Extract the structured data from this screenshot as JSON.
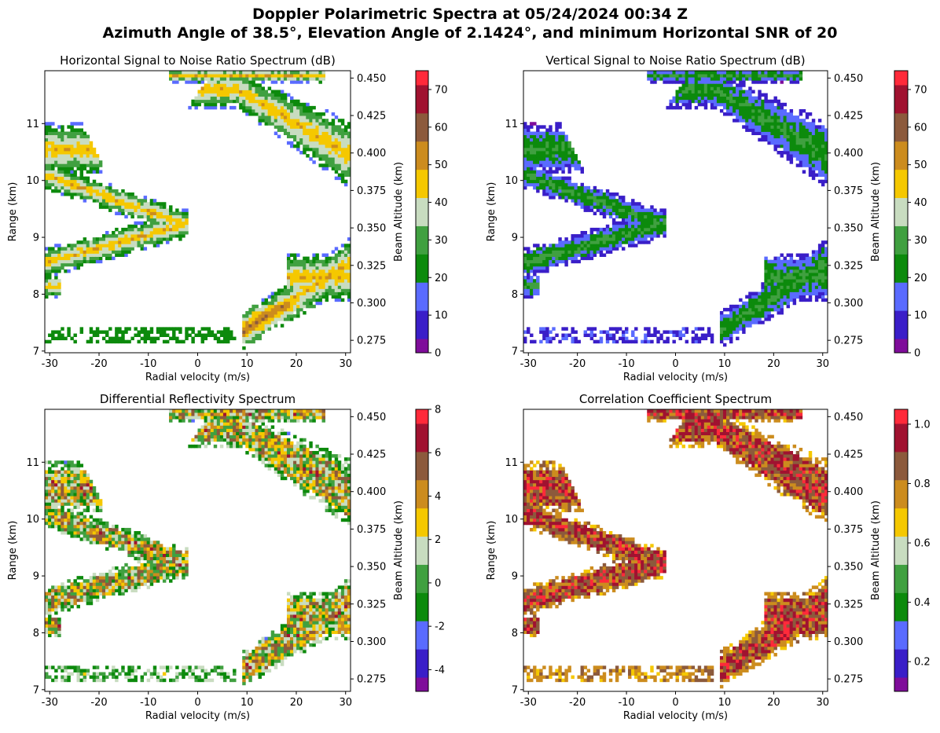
{
  "figure": {
    "title_line1": "Doppler Polarimetric Spectra at 05/24/2024 00:34 Z",
    "title_line2": "Azimuth Angle of 38.5°, Elevation Angle of 2.1424°, and minimum Horizontal SNR of 20"
  },
  "chart_data": [
    {
      "type": "heatmap",
      "title": "Horizontal Signal to Noise Ratio Spectrum (dB)",
      "xlabel": "Radial velocity (m/s)",
      "ylabel": "Range (km)",
      "ylabel_right": "Beam Altitude (km)",
      "xlim": [
        -31,
        31
      ],
      "ylim": [
        6.97,
        11.93
      ],
      "y2lim": [
        0.2667,
        0.4549
      ],
      "x_ticks": [
        -30,
        -20,
        -10,
        0,
        10,
        20,
        30
      ],
      "y_ticks": [
        7,
        8,
        9,
        10,
        11
      ],
      "y2_ticks": [
        "0.275",
        "0.300",
        "0.325",
        "0.350",
        "0.375",
        "0.400",
        "0.425",
        "0.450"
      ],
      "colorbar": {
        "min": 0,
        "max": 75,
        "ticks": [
          0,
          10,
          20,
          30,
          40,
          50,
          60,
          70
        ]
      },
      "field": "snr_h",
      "colormap": [
        "#7f0d9a",
        "#3a1ec8",
        "#5a6bff",
        "#0c8a0c",
        "#40a040",
        "#c8dcc0",
        "#f5c800",
        "#cc8c1e",
        "#8c5a3c",
        "#a01230",
        "#ff2a3a"
      ]
    },
    {
      "type": "heatmap",
      "title": "Vertical Signal to Noise Ratio Spectrum (dB)",
      "xlabel": "Radial velocity (m/s)",
      "ylabel": "Range (km)",
      "ylabel_right": "Beam Altitude (km)",
      "xlim": [
        -31,
        31
      ],
      "ylim": [
        6.97,
        11.93
      ],
      "y2lim": [
        0.2667,
        0.4549
      ],
      "x_ticks": [
        -30,
        -20,
        -10,
        0,
        10,
        20,
        30
      ],
      "y_ticks": [
        7,
        8,
        9,
        10,
        11
      ],
      "y2_ticks": [
        "0.275",
        "0.300",
        "0.325",
        "0.350",
        "0.375",
        "0.400",
        "0.425",
        "0.450"
      ],
      "colorbar": {
        "min": 0,
        "max": 75,
        "ticks": [
          0,
          10,
          20,
          30,
          40,
          50,
          60,
          70
        ]
      },
      "field": "snr_v",
      "colormap": [
        "#7f0d9a",
        "#3a1ec8",
        "#5a6bff",
        "#0c8a0c",
        "#40a040",
        "#c8dcc0",
        "#f5c800",
        "#cc8c1e",
        "#8c5a3c",
        "#a01230",
        "#ff2a3a"
      ]
    },
    {
      "type": "heatmap",
      "title": "Differential Reflectivity Spectrum",
      "xlabel": "Radial velocity (m/s)",
      "ylabel": "Range (km)",
      "ylabel_right": "Beam Altitude (km)",
      "xlim": [
        -31,
        31
      ],
      "ylim": [
        6.97,
        11.93
      ],
      "y2lim": [
        0.2667,
        0.4549
      ],
      "x_ticks": [
        -30,
        -20,
        -10,
        0,
        10,
        20,
        30
      ],
      "y_ticks": [
        7,
        8,
        9,
        10,
        11
      ],
      "y2_ticks": [
        "0.275",
        "0.300",
        "0.325",
        "0.350",
        "0.375",
        "0.400",
        "0.425",
        "0.450"
      ],
      "colorbar": {
        "min": -5,
        "max": 8,
        "ticks": [
          -4,
          -2,
          0,
          2,
          4,
          6,
          8
        ]
      },
      "field": "zdr",
      "colormap": [
        "#7f0d9a",
        "#3a1ec8",
        "#5a6bff",
        "#0c8a0c",
        "#40a040",
        "#c8dcc0",
        "#f5c800",
        "#cc8c1e",
        "#8c5a3c",
        "#a01230",
        "#ff2a3a"
      ]
    },
    {
      "type": "heatmap",
      "title": "Correlation Coefficient Spectrum",
      "xlabel": "Radial velocity (m/s)",
      "ylabel": "Range (km)",
      "ylabel_right": "Beam Altitude (km)",
      "xlim": [
        -31,
        31
      ],
      "ylim": [
        6.97,
        11.93
      ],
      "y2lim": [
        0.2667,
        0.4549
      ],
      "x_ticks": [
        -30,
        -20,
        -10,
        0,
        10,
        20,
        30
      ],
      "y_ticks": [
        7,
        8,
        9,
        10,
        11
      ],
      "y2_ticks": [
        "0.275",
        "0.300",
        "0.325",
        "0.350",
        "0.375",
        "0.400",
        "0.425",
        "0.450"
      ],
      "colorbar": {
        "min": 0.1,
        "max": 1.05,
        "ticks": [
          "0.2",
          "0.4",
          "0.6",
          "0.8",
          "1.0"
        ]
      },
      "field": "rhohv",
      "colormap": [
        "#7f0d9a",
        "#3a1ec8",
        "#5a6bff",
        "#0c8a0c",
        "#40a040",
        "#c8dcc0",
        "#f5c800",
        "#cc8c1e",
        "#8c5a3c",
        "#a01230",
        "#ff2a3a"
      ]
    }
  ]
}
